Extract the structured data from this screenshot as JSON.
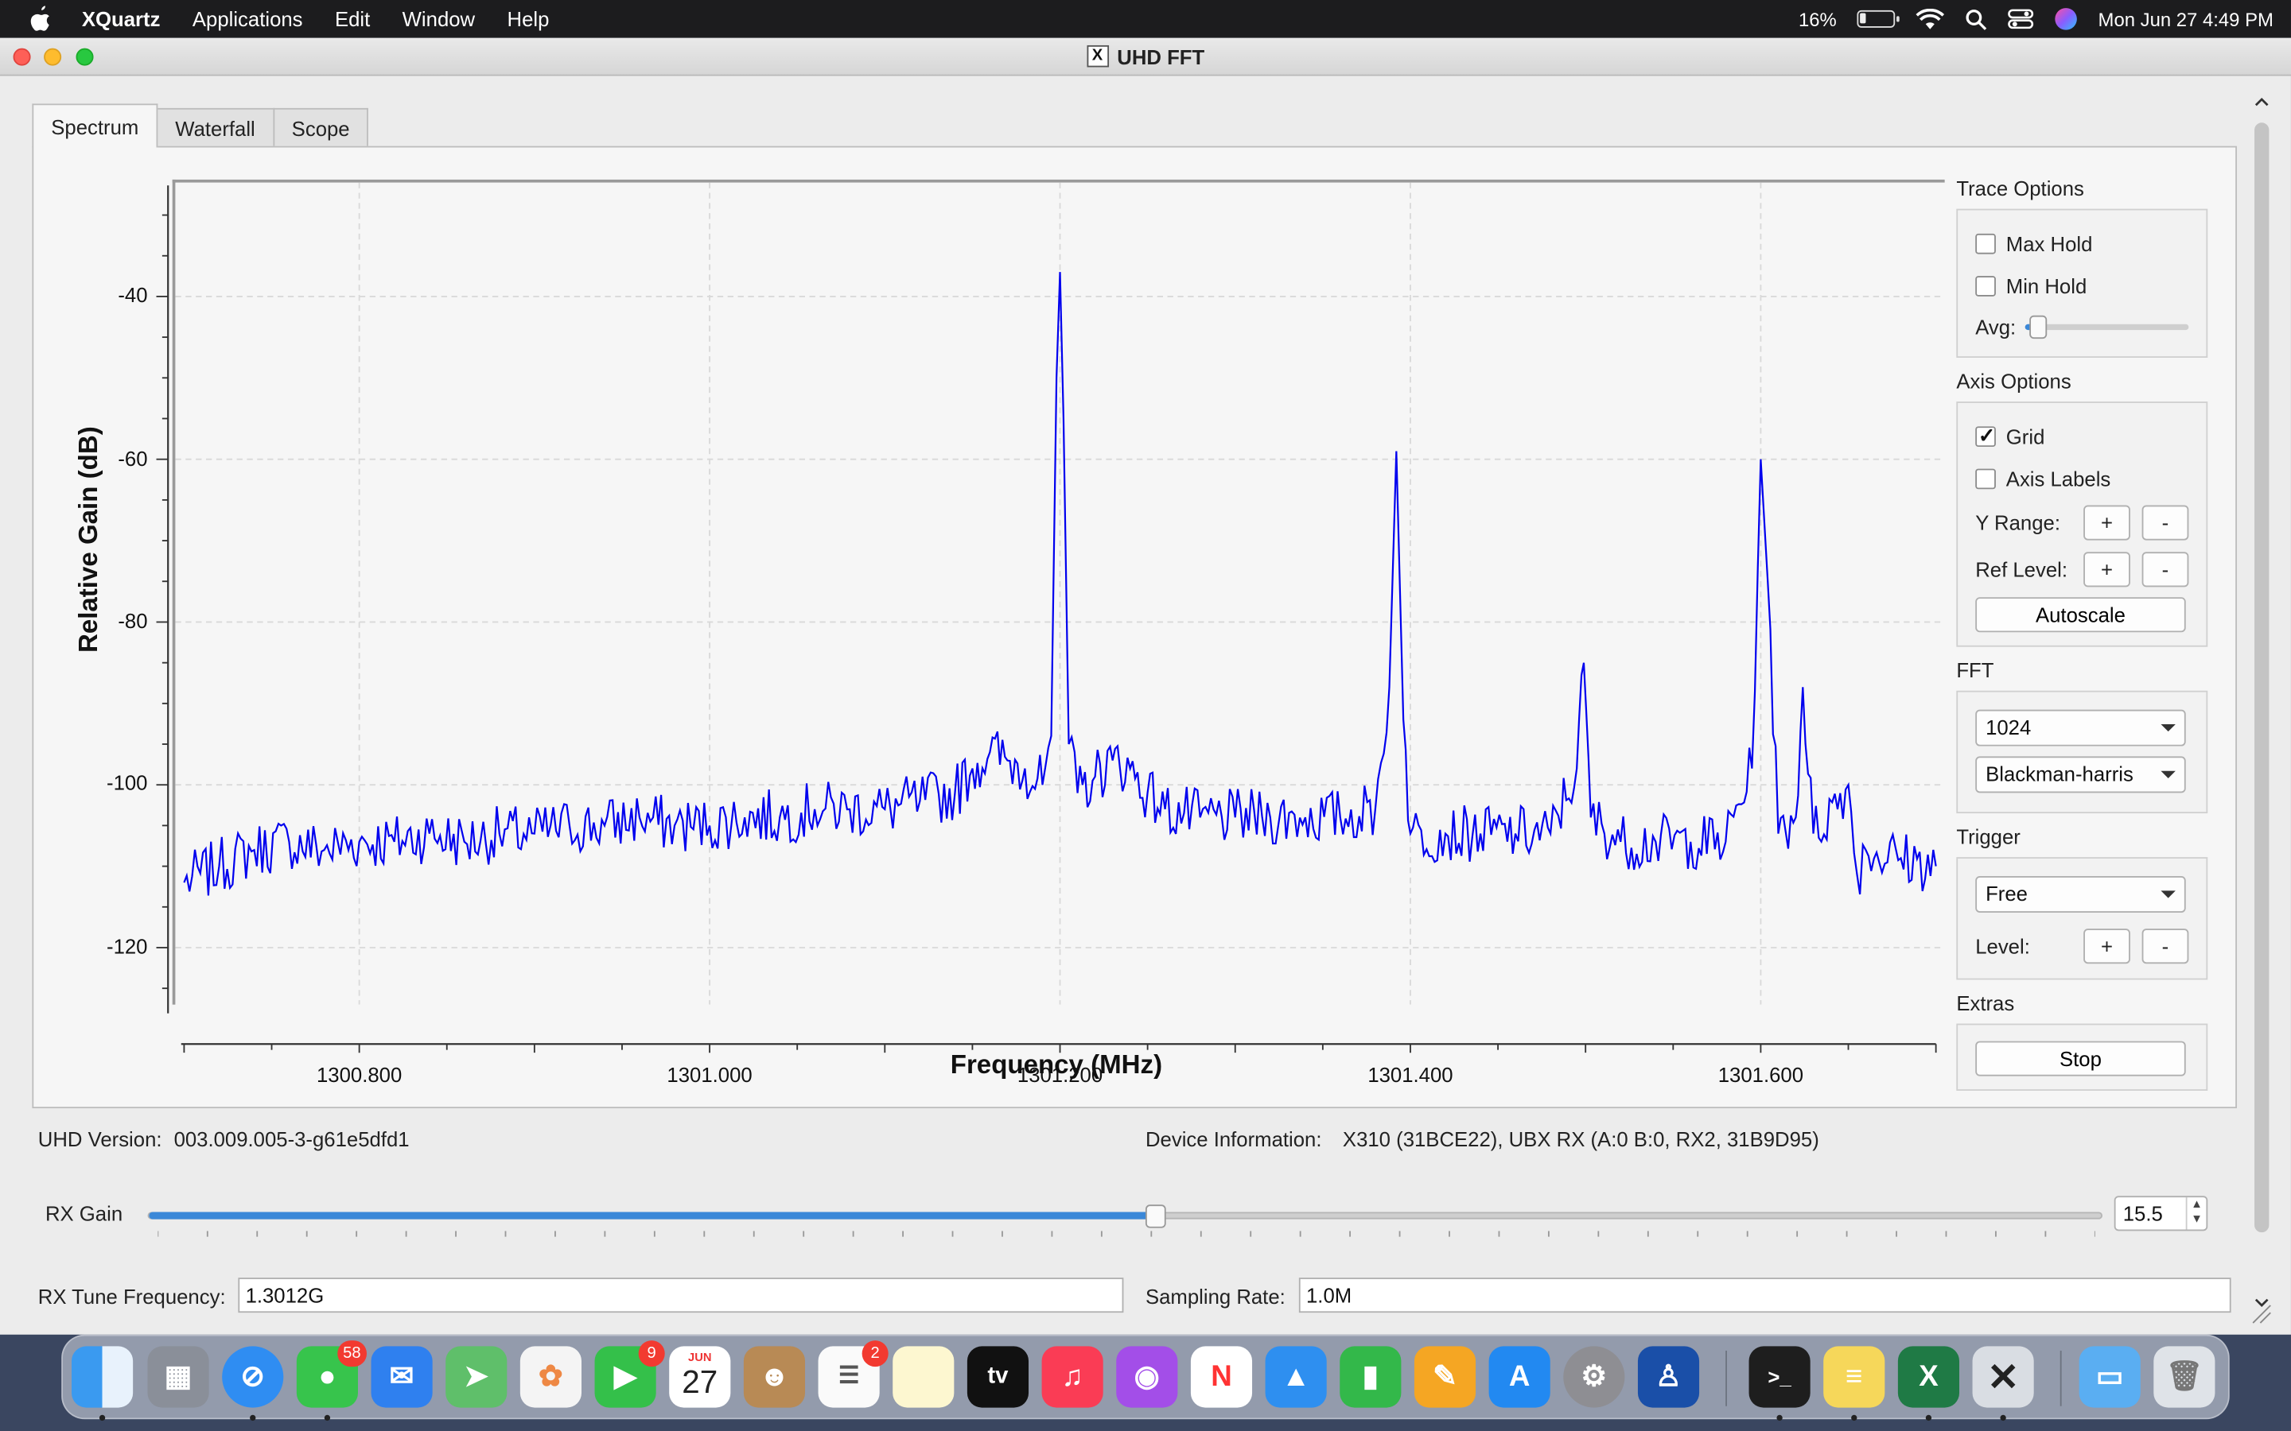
{
  "menubar": {
    "app": "XQuartz",
    "items": [
      "Applications",
      "Edit",
      "Window",
      "Help"
    ],
    "battery": "16%",
    "datetime": "Mon Jun 27  4:49 PM"
  },
  "window": {
    "title": "UHD FFT"
  },
  "tabs": [
    "Spectrum",
    "Waterfall",
    "Scope"
  ],
  "chart_data": {
    "type": "line",
    "xlabel": "Frequency (MHz)",
    "ylabel": "Relative Gain (dB)",
    "xlim": [
      1300.7,
      1301.7
    ],
    "ylim": [
      -127,
      -26
    ],
    "xticks": [
      "1300.800",
      "1301.000",
      "1301.200",
      "1301.400",
      "1301.600"
    ],
    "xtick_values": [
      1300.8,
      1301.0,
      1301.2,
      1301.4,
      1301.6
    ],
    "yticks": [
      "-40",
      "-60",
      "-80",
      "-100",
      "-120"
    ],
    "ytick_values": [
      -40,
      -60,
      -80,
      -100,
      -120
    ],
    "grid": true,
    "line_color": "#0000ee",
    "series": [
      {
        "x": [
          1300.7,
          1300.72,
          1300.74,
          1300.76,
          1300.78,
          1300.8,
          1300.82,
          1300.84,
          1300.86,
          1300.88,
          1300.9,
          1300.92,
          1300.94,
          1300.96,
          1300.98,
          1301.0,
          1301.02,
          1301.04,
          1301.06,
          1301.08,
          1301.1,
          1301.12,
          1301.14,
          1301.15,
          1301.16,
          1301.17,
          1301.18,
          1301.19,
          1301.195,
          1301.198,
          1301.2,
          1301.202,
          1301.205,
          1301.21,
          1301.22,
          1301.23,
          1301.24,
          1301.25,
          1301.26,
          1301.28,
          1301.3,
          1301.32,
          1301.34,
          1301.36,
          1301.38,
          1301.388,
          1301.392,
          1301.396,
          1301.4,
          1301.42,
          1301.44,
          1301.46,
          1301.48,
          1301.495,
          1301.499,
          1301.503,
          1301.52,
          1301.54,
          1301.56,
          1301.58,
          1301.595,
          1301.6,
          1301.604,
          1301.61,
          1301.62,
          1301.624,
          1301.63,
          1301.65,
          1301.655,
          1301.66,
          1301.68,
          1301.7
        ],
        "y": [
          -112,
          -110,
          -108,
          -107,
          -108,
          -107,
          -107,
          -106,
          -107,
          -106,
          -106,
          -105,
          -105,
          -104,
          -105,
          -105,
          -104,
          -104,
          -103,
          -103,
          -103,
          -102,
          -101,
          -98,
          -96,
          -97,
          -98,
          -100,
          -94,
          -50,
          -37,
          -55,
          -95,
          -101,
          -99,
          -97,
          -98,
          -101,
          -103,
          -104,
          -104,
          -104,
          -104,
          -104,
          -103,
          -88,
          -59,
          -92,
          -106,
          -106,
          -106,
          -106,
          -106,
          -98,
          -85,
          -104,
          -107,
          -107,
          -107,
          -107,
          -98,
          -60,
          -75,
          -106,
          -104,
          -88,
          -106,
          -100,
          -111,
          -108,
          -109,
          -110
        ]
      }
    ]
  },
  "trace_options": {
    "title": "Trace Options",
    "max_hold": "Max Hold",
    "min_hold": "Min Hold",
    "avg": "Avg:",
    "avg_level": 0.08
  },
  "axis_options": {
    "title": "Axis Options",
    "grid": "Grid",
    "axis_labels": "Axis Labels",
    "y_range": "Y Range:",
    "ref_level": "Ref Level:",
    "plus": "+",
    "minus": "-",
    "autoscale": "Autoscale"
  },
  "fft": {
    "title": "FFT",
    "size": "1024",
    "window": "Blackman-harris"
  },
  "trigger": {
    "title": "Trigger",
    "mode": "Free",
    "level": "Level:"
  },
  "extras": {
    "title": "Extras",
    "stop": "Stop"
  },
  "info": {
    "uhd_label": "UHD Version:",
    "uhd_value": "003.009.005-3-g61e5dfd1",
    "device_label": "Device Information:",
    "device_value": "X310 (31BCE22), UBX RX (A:0 B:0, RX2, 31B9D95)"
  },
  "rx_gain": {
    "label": "RX Gain",
    "value": "15.5",
    "fraction": 0.516
  },
  "rx_tune": {
    "label": "RX Tune Frequency:",
    "value": "1.3012G"
  },
  "sampling": {
    "label": "Sampling Rate:",
    "value": "1.0M"
  },
  "dock": {
    "messages_badge": "58",
    "facetime_badge": "9",
    "reminders_badge": "2",
    "calendar_month": "JUN",
    "calendar_day": "27",
    "tv_label": "tv"
  }
}
